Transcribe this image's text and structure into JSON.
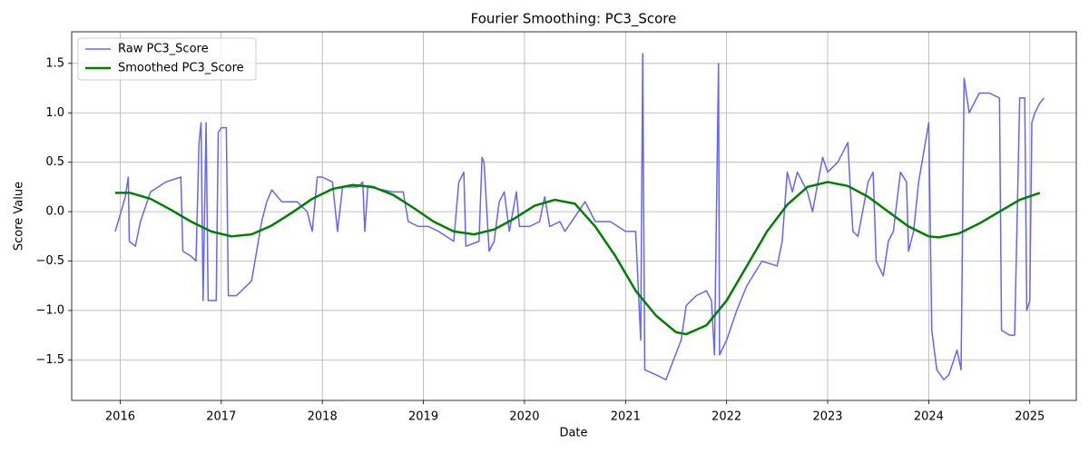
{
  "chart_data": {
    "type": "line",
    "title": "Fourier Smoothing: PC3_Score",
    "xlabel": "Date",
    "ylabel": "Score Value",
    "xlim": [
      2015.52,
      2025.46
    ],
    "ylim": [
      -1.91,
      1.82
    ],
    "xticks": [
      2016,
      2017,
      2018,
      2019,
      2020,
      2021,
      2022,
      2023,
      2024,
      2025
    ],
    "yticks": [
      {
        "value": -1.5,
        "label": "−1.5"
      },
      {
        "value": -1.0,
        "label": "−1.0"
      },
      {
        "value": -0.5,
        "label": "−0.5"
      },
      {
        "value": 0.0,
        "label": "0.0"
      },
      {
        "value": 0.5,
        "label": "0.5"
      },
      {
        "value": 1.0,
        "label": "1.0"
      },
      {
        "value": 1.5,
        "label": "1.5"
      }
    ],
    "grid": true,
    "legend": "upper left",
    "series": [
      {
        "name": "Raw PC3_Score",
        "color": "#6666ee",
        "width": 1.5,
        "x": [
          2015.95,
          2015.98,
          2016.05,
          2016.08,
          2016.09,
          2016.15,
          2016.2,
          2016.3,
          2016.45,
          2016.6,
          2016.62,
          2016.7,
          2016.75,
          2016.78,
          2016.8,
          2016.82,
          2016.85,
          2016.87,
          2016.95,
          2016.97,
          2017.0,
          2017.05,
          2017.07,
          2017.15,
          2017.3,
          2017.35,
          2017.4,
          2017.45,
          2017.5,
          2017.6,
          2017.75,
          2017.85,
          2017.9,
          2017.95,
          2018.0,
          2018.1,
          2018.15,
          2018.2,
          2018.35,
          2018.4,
          2018.42,
          2018.45,
          2018.6,
          2018.7,
          2018.8,
          2018.85,
          2018.95,
          2019.05,
          2019.15,
          2019.3,
          2019.35,
          2019.4,
          2019.42,
          2019.55,
          2019.58,
          2019.6,
          2019.65,
          2019.7,
          2019.75,
          2019.8,
          2019.85,
          2019.92,
          2019.95,
          2020.05,
          2020.15,
          2020.2,
          2020.25,
          2020.35,
          2020.4,
          2020.5,
          2020.6,
          2020.7,
          2020.85,
          2021.0,
          2021.1,
          2021.15,
          2021.17,
          2021.19,
          2021.3,
          2021.4,
          2021.55,
          2021.6,
          2021.7,
          2021.8,
          2021.85,
          2021.88,
          2021.92,
          2021.93,
          2022.0,
          2022.1,
          2022.2,
          2022.35,
          2022.5,
          2022.55,
          2022.6,
          2022.65,
          2022.7,
          2022.8,
          2022.85,
          2022.95,
          2023.0,
          2023.1,
          2023.2,
          2023.22,
          2023.25,
          2023.3,
          2023.4,
          2023.45,
          2023.48,
          2023.55,
          2023.6,
          2023.65,
          2023.72,
          2023.78,
          2023.8,
          2023.85,
          2023.9,
          2024.0,
          2024.03,
          2024.08,
          2024.15,
          2024.2,
          2024.28,
          2024.32,
          2024.35,
          2024.4,
          2024.5,
          2024.6,
          2024.7,
          2024.72,
          2024.8,
          2024.85,
          2024.9,
          2024.95,
          2024.97,
          2025.0,
          2025.02,
          2025.05,
          2025.1,
          2025.14
        ],
        "values": [
          -0.2,
          -0.1,
          0.15,
          0.35,
          -0.3,
          -0.35,
          -0.1,
          0.2,
          0.3,
          0.35,
          -0.4,
          -0.45,
          -0.5,
          0.7,
          0.9,
          -0.9,
          0.9,
          -0.9,
          -0.9,
          0.8,
          0.85,
          0.85,
          -0.85,
          -0.85,
          -0.7,
          -0.4,
          -0.1,
          0.1,
          0.22,
          0.1,
          0.1,
          0.0,
          -0.2,
          0.35,
          0.35,
          0.3,
          -0.2,
          0.25,
          0.25,
          0.3,
          -0.2,
          0.25,
          0.22,
          0.2,
          0.2,
          -0.1,
          -0.15,
          -0.15,
          -0.2,
          -0.3,
          0.3,
          0.4,
          -0.35,
          -0.3,
          0.55,
          0.5,
          -0.4,
          -0.3,
          0.1,
          0.2,
          -0.2,
          0.2,
          -0.15,
          -0.15,
          -0.1,
          0.15,
          -0.15,
          -0.1,
          -0.2,
          -0.05,
          0.1,
          -0.1,
          -0.1,
          -0.2,
          -0.2,
          -1.3,
          1.6,
          -1.6,
          -1.65,
          -1.7,
          -1.3,
          -0.95,
          -0.85,
          -0.8,
          -0.9,
          -1.45,
          1.5,
          -1.45,
          -1.3,
          -1.0,
          -0.75,
          -0.5,
          -0.55,
          -0.3,
          0.4,
          0.2,
          0.4,
          0.2,
          0.0,
          0.55,
          0.4,
          0.5,
          0.7,
          0.3,
          -0.2,
          -0.25,
          0.3,
          0.4,
          -0.5,
          -0.65,
          -0.3,
          -0.2,
          0.4,
          0.3,
          -0.4,
          -0.2,
          0.3,
          0.9,
          -1.2,
          -1.6,
          -1.7,
          -1.65,
          -1.4,
          -1.6,
          1.35,
          1.0,
          1.2,
          1.2,
          1.15,
          -1.2,
          -1.25,
          -1.25,
          1.15,
          1.15,
          -1.0,
          -0.9,
          0.9,
          1.0,
          1.1,
          1.15
        ]
      },
      {
        "name": "Smoothed PC3_Score",
        "color": "#008000",
        "width": 2.5,
        "x": [
          2015.95,
          2016.1,
          2016.3,
          2016.5,
          2016.7,
          2016.9,
          2017.1,
          2017.3,
          2017.5,
          2017.7,
          2017.9,
          2018.1,
          2018.3,
          2018.5,
          2018.7,
          2018.9,
          2019.1,
          2019.3,
          2019.5,
          2019.7,
          2019.9,
          2020.1,
          2020.3,
          2020.5,
          2020.7,
          2020.9,
          2021.1,
          2021.3,
          2021.5,
          2021.6,
          2021.8,
          2022.0,
          2022.2,
          2022.4,
          2022.6,
          2022.8,
          2023.0,
          2023.2,
          2023.4,
          2023.6,
          2023.8,
          2024.0,
          2024.1,
          2024.3,
          2024.5,
          2024.7,
          2024.9,
          2025.1
        ],
        "values": [
          0.19,
          0.19,
          0.13,
          0.02,
          -0.1,
          -0.2,
          -0.25,
          -0.23,
          -0.14,
          -0.01,
          0.13,
          0.23,
          0.27,
          0.25,
          0.17,
          0.04,
          -0.1,
          -0.2,
          -0.23,
          -0.18,
          -0.07,
          0.06,
          0.12,
          0.08,
          -0.15,
          -0.45,
          -0.8,
          -1.05,
          -1.22,
          -1.24,
          -1.15,
          -0.9,
          -0.55,
          -0.2,
          0.07,
          0.25,
          0.3,
          0.26,
          0.15,
          0.0,
          -0.15,
          -0.25,
          -0.26,
          -0.22,
          -0.12,
          0.0,
          0.12,
          0.19
        ]
      }
    ]
  }
}
